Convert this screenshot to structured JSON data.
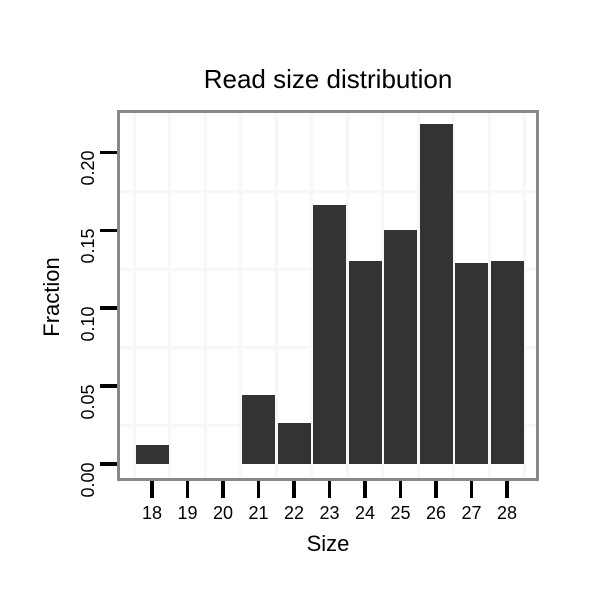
{
  "title": "Read size distribution",
  "chart_data": {
    "type": "bar",
    "title": "Read size distribution",
    "xlabel": "Size",
    "ylabel": "Fraction",
    "categories": [
      "18",
      "19",
      "20",
      "21",
      "22",
      "23",
      "24",
      "25",
      "26",
      "27",
      "28"
    ],
    "values": [
      0.012,
      0,
      0,
      0.044,
      0.026,
      0.166,
      0.13,
      0.15,
      0.218,
      0.129,
      0.13
    ],
    "y_tick_labels": [
      "0.00",
      "0.05",
      "0.10",
      "0.15",
      "0.20"
    ],
    "y_tick_values": [
      0.0,
      0.05,
      0.1,
      0.15,
      0.2
    ],
    "ylim": [
      -0.011,
      0.228
    ],
    "grid": "minor-gridlines-only",
    "legend": "none",
    "colors": {
      "bar_fill": "#333333",
      "grid_line": "#f7f7f7",
      "panel_border": "#888888",
      "tick_mark": "#000000",
      "text": "#000000",
      "background": "#ffffff"
    }
  }
}
